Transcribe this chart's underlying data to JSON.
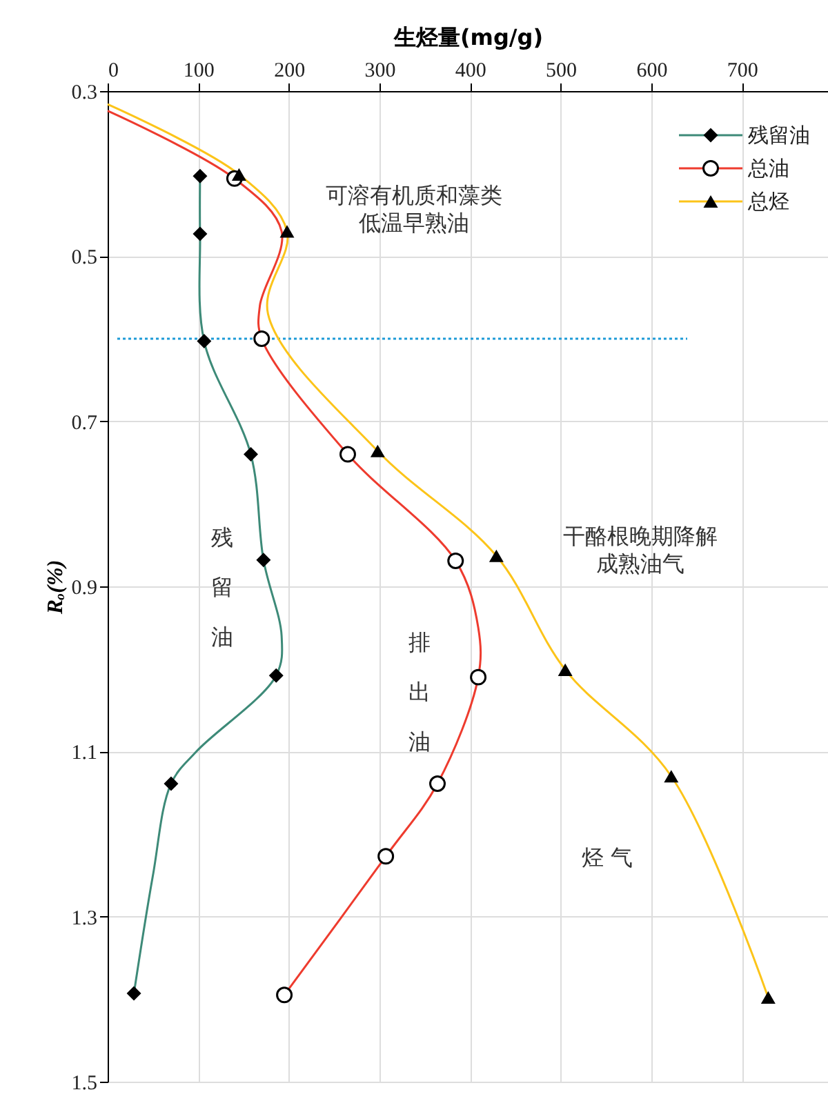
{
  "chart_data": {
    "type": "line",
    "xlabel": "生烃量(mg/g)",
    "ylabel": "Rₒ(%)",
    "xlim": [
      0,
      795
    ],
    "xticks": [
      0,
      100,
      200,
      300,
      400,
      500,
      600,
      700
    ],
    "ylim": [
      1.5,
      0.3
    ],
    "yticks": [
      0.3,
      0.5,
      0.7,
      0.9,
      1.1,
      1.3,
      1.5
    ],
    "grid": true,
    "legend": "top right",
    "series": [
      {
        "color": "#3d8a78",
        "marker": "none",
        "x": [
          102,
          102,
          106.5,
          158,
          172,
          192,
          186,
          98,
          70,
          50,
          29
        ],
        "values": [
          0.403,
          0.473,
          0.603,
          0.74,
          0.868,
          0.96,
          1.008,
          1.1,
          1.139,
          1.25,
          1.393
        ]
      },
      {
        "type": "scatter",
        "name": "残留油",
        "color": "#000000",
        "marker": "diamond",
        "x": [
          102,
          102,
          106.5,
          158,
          172,
          186,
          70,
          29
        ],
        "values": [
          0.403,
          0.473,
          0.603,
          0.74,
          0.868,
          1.008,
          1.139,
          1.393
        ]
      },
      {
        "color": "#ee3b2e",
        "marker": "none",
        "x": [
          0,
          140,
          192,
          168,
          170,
          265,
          384,
          409,
          409,
          364,
          307,
          195
        ],
        "values": [
          0.324,
          0.406,
          0.47,
          0.56,
          0.6,
          0.74,
          0.869,
          0.95,
          1.01,
          1.139,
          1.227,
          1.395
        ]
      },
      {
        "type": "scatter",
        "name": "总油",
        "color": "#000000",
        "marker": "circle",
        "x": [
          140,
          170,
          265,
          384,
          409,
          364,
          307,
          195
        ],
        "values": [
          0.406,
          0.6,
          0.74,
          0.869,
          1.01,
          1.139,
          1.227,
          1.395
        ]
      },
      {
        "color": "#fcc419",
        "marker": "none",
        "x": [
          0,
          145,
          198,
          177,
          298,
          429,
          505,
          622,
          729
        ],
        "values": [
          0.316,
          0.401,
          0.47,
          0.57,
          0.736,
          0.863,
          1.001,
          1.13,
          1.398
        ]
      },
      {
        "type": "scatter",
        "name": "总烃",
        "color": "#000000",
        "marker": "triangle",
        "x": [
          145,
          198,
          298,
          429,
          505,
          622,
          729
        ],
        "values": [
          0.401,
          0.47,
          0.736,
          0.863,
          1.001,
          1.13,
          1.398
        ]
      }
    ],
    "ref_lines": [
      {
        "axis": "y",
        "value": 0.6,
        "color": "#1e9bd7",
        "line_style": "dotted"
      }
    ],
    "annotations": [
      "可溶有机质和藻类",
      "低温早熟油",
      "干酪根晚期降解",
      "成熟油气",
      "残留油",
      "排出油",
      "烃  气"
    ]
  }
}
